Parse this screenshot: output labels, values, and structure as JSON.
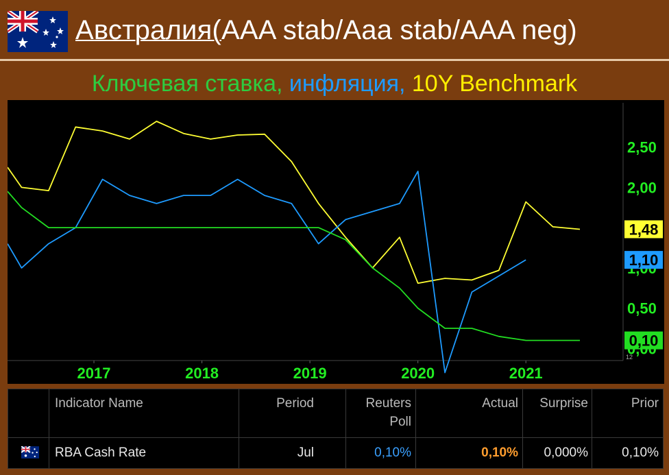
{
  "header": {
    "title_part1": "Австралия(",
    "title_part2": "AAA stab/Aaa stab/AAA neg)",
    "flag_icon": "australia-flag-icon"
  },
  "subtitle": {
    "part1": "Ключевая ставка, ",
    "part2": "инфляция, ",
    "part3": "10Y Benchmark"
  },
  "colors": {
    "cash_rate": "#22dd22",
    "inflation": "#1e9bff",
    "benchmark": "#ffff33",
    "axis_label": "#22ee22",
    "background": "#7a3d0f"
  },
  "chart_data": {
    "type": "line",
    "x_range": [
      2016.2,
      2021.9
    ],
    "y_range": [
      -0.15,
      3.05
    ],
    "x_ticks": [
      2017,
      2018,
      2019,
      2020,
      2021
    ],
    "x_tick_labels": [
      "2017",
      "2018",
      "2019",
      "2020",
      "2021"
    ],
    "y_ticks": [
      0.0,
      0.5,
      1.0,
      2.0,
      2.5
    ],
    "y_tick_labels": [
      "0,00",
      "0,50",
      "1,00",
      "2,00",
      "2,50"
    ],
    "grid": false,
    "series": [
      {
        "key": "benchmark",
        "color": "#ffff33",
        "points": [
          [
            2016.2,
            2.25
          ],
          [
            2016.33,
            2.0
          ],
          [
            2016.58,
            1.96
          ],
          [
            2016.83,
            2.75
          ],
          [
            2017.08,
            2.7
          ],
          [
            2017.33,
            2.6
          ],
          [
            2017.58,
            2.82
          ],
          [
            2017.83,
            2.67
          ],
          [
            2018.08,
            2.6
          ],
          [
            2018.33,
            2.65
          ],
          [
            2018.58,
            2.66
          ],
          [
            2018.83,
            2.32
          ],
          [
            2019.08,
            1.8
          ],
          [
            2019.33,
            1.38
          ],
          [
            2019.58,
            1.0
          ],
          [
            2019.83,
            1.38
          ],
          [
            2020.0,
            0.81
          ],
          [
            2020.25,
            0.87
          ],
          [
            2020.5,
            0.85
          ],
          [
            2020.75,
            0.97
          ],
          [
            2021.0,
            1.82
          ],
          [
            2021.25,
            1.51
          ],
          [
            2021.5,
            1.48
          ]
        ]
      },
      {
        "key": "inflation",
        "color": "#1e9bff",
        "points": [
          [
            2016.2,
            1.3
          ],
          [
            2016.33,
            1.0
          ],
          [
            2016.58,
            1.3
          ],
          [
            2016.83,
            1.5
          ],
          [
            2017.08,
            2.1
          ],
          [
            2017.33,
            1.9
          ],
          [
            2017.58,
            1.8
          ],
          [
            2017.83,
            1.9
          ],
          [
            2018.08,
            1.9
          ],
          [
            2018.33,
            2.1
          ],
          [
            2018.58,
            1.9
          ],
          [
            2018.83,
            1.8
          ],
          [
            2019.08,
            1.3
          ],
          [
            2019.33,
            1.6
          ],
          [
            2019.58,
            1.7
          ],
          [
            2019.83,
            1.8
          ],
          [
            2020.0,
            2.2
          ],
          [
            2020.25,
            -0.3
          ],
          [
            2020.5,
            0.7
          ],
          [
            2020.75,
            0.9
          ],
          [
            2021.0,
            1.1
          ]
        ]
      },
      {
        "key": "cash_rate",
        "color": "#22dd22",
        "points": [
          [
            2016.2,
            1.95
          ],
          [
            2016.33,
            1.75
          ],
          [
            2016.58,
            1.5
          ],
          [
            2016.83,
            1.5
          ],
          [
            2017.08,
            1.5
          ],
          [
            2017.33,
            1.5
          ],
          [
            2017.58,
            1.5
          ],
          [
            2017.83,
            1.5
          ],
          [
            2018.08,
            1.5
          ],
          [
            2018.33,
            1.5
          ],
          [
            2018.58,
            1.5
          ],
          [
            2018.83,
            1.5
          ],
          [
            2019.08,
            1.5
          ],
          [
            2019.33,
            1.35
          ],
          [
            2019.58,
            1.0
          ],
          [
            2019.83,
            0.75
          ],
          [
            2020.0,
            0.5
          ],
          [
            2020.25,
            0.25
          ],
          [
            2020.5,
            0.25
          ],
          [
            2020.75,
            0.15
          ],
          [
            2021.0,
            0.1
          ],
          [
            2021.25,
            0.1
          ],
          [
            2021.5,
            0.1
          ]
        ]
      }
    ],
    "end_labels": [
      {
        "text": "1,48",
        "value": 1.48,
        "bg": "#ffff33",
        "fg": "#000000"
      },
      {
        "text": "1,10",
        "value": 1.1,
        "bg": "#1e9bff",
        "fg": "#000000"
      },
      {
        "text": "0,10",
        "value": 0.1,
        "bg": "#22dd22",
        "fg": "#000000"
      }
    ],
    "corner_label": "12"
  },
  "table": {
    "headers": {
      "indicator": "Indicator Name",
      "period": "Period",
      "poll_line1": "Reuters",
      "poll_line2": "Poll",
      "actual": "Actual",
      "surprise": "Surprise",
      "prior": "Prior"
    },
    "row": {
      "flag_icon": "australia-flag-icon",
      "indicator": "RBA Cash Rate",
      "period": "Jul",
      "poll": "0,10%",
      "actual": "0,10%",
      "surprise": "0,000%",
      "prior": "0,10%"
    },
    "row_colors": {
      "poll": "#3aa0ff",
      "actual": "#ff9d2e"
    }
  }
}
